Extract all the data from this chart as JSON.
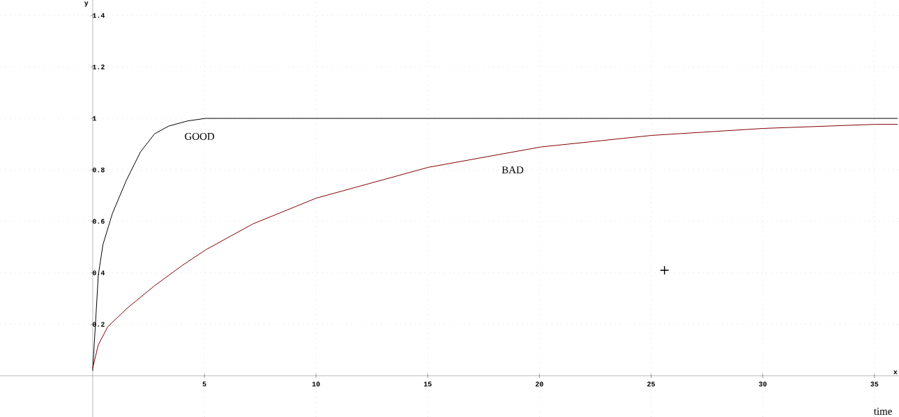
{
  "chart_data": {
    "type": "line",
    "xlabel": "x",
    "ylabel": "y",
    "annotations": [
      "time"
    ],
    "xlim": [
      -4.15,
      36.1
    ],
    "ylim": [
      -0.16,
      1.46
    ],
    "xticks": [
      5,
      10,
      15,
      20,
      25,
      30,
      35
    ],
    "yticks": [
      0.2,
      0.4,
      0.6,
      0.8,
      1,
      1.2,
      1.4
    ],
    "grid": true,
    "legend": false,
    "series": [
      {
        "name": "GOOD",
        "color": "#000000",
        "marker": "none",
        "x": [
          0,
          0.15,
          0.25,
          0.46,
          0.88,
          1.51,
          2.14,
          2.77,
          3.4,
          4.24,
          5.04,
          10,
          20,
          30,
          36.04
        ],
        "values": [
          0.02,
          0.24,
          0.39,
          0.51,
          0.63,
          0.76,
          0.87,
          0.94,
          0.97,
          0.99,
          1.0,
          1.0,
          1.0,
          1.0,
          1.0
        ]
      },
      {
        "name": "BAD",
        "color": "#800000",
        "marker": "none",
        "x": [
          0,
          0.25,
          0.67,
          1.51,
          2.77,
          4.03,
          5.07,
          7.17,
          10,
          15.03,
          20.06,
          25.03,
          30.02,
          35.05,
          36.04
        ],
        "values": [
          0.03,
          0.12,
          0.19,
          0.26,
          0.35,
          0.43,
          0.49,
          0.59,
          0.69,
          0.81,
          0.889,
          0.934,
          0.961,
          0.977,
          0.977
        ]
      },
      {
        "type": "scatter",
        "color": "#000000",
        "marker": "cross",
        "x": [
          25.6
        ],
        "values": [
          0.41
        ]
      }
    ]
  }
}
